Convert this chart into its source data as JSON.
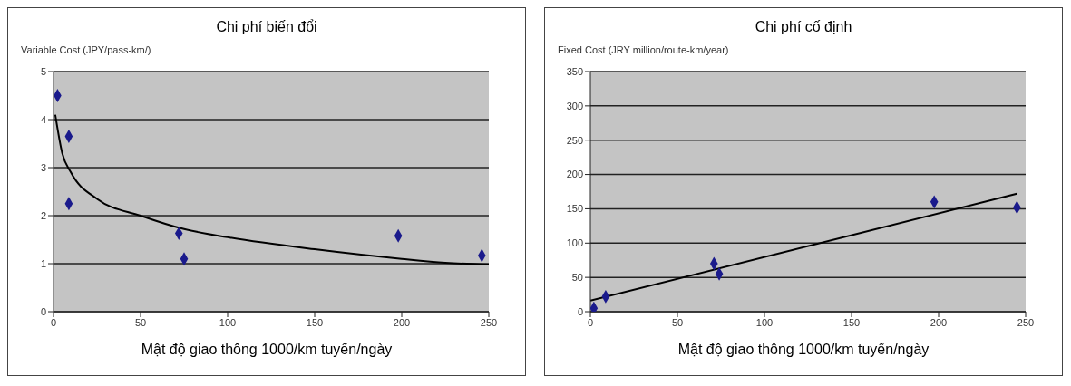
{
  "chart_data": [
    {
      "type": "scatter",
      "title": "Chi phí biến đổi",
      "ylabel": "Variable Cost (JPY/pass-km/)",
      "xlabel": "Mật độ giao thông 1000/km tuyến/ngày",
      "xlim": [
        0,
        250
      ],
      "xticks": [
        0,
        50,
        100,
        150,
        200,
        250
      ],
      "ylim": [
        0,
        5
      ],
      "yticks": [
        0,
        1,
        2,
        3,
        4,
        5
      ],
      "grid": "y",
      "legend": false,
      "marker": "diamond",
      "series": [
        {
          "color": "#1a1a8c",
          "x": [
            2.3,
            8.8,
            8.8,
            72,
            75,
            198,
            246
          ],
          "values": [
            4.5,
            3.65,
            2.25,
            1.63,
            1.1,
            1.58,
            1.17
          ]
        },
        {
          "type": "line",
          "color": "#000000",
          "marker": "none",
          "line_style": "solid",
          "x": [
            1,
            5,
            10,
            25,
            50,
            75,
            100,
            150,
            200,
            225,
            250
          ],
          "values": [
            4.1,
            3.3,
            2.9,
            2.35,
            2.0,
            1.72,
            1.55,
            1.3,
            1.1,
            1.02,
            0.98
          ]
        }
      ]
    },
    {
      "type": "scatter",
      "title": "Chi phí cố định",
      "ylabel": "Fixed Cost (JRY million/route-km/year)",
      "xlabel": "Mật độ giao thông 1000/km tuyến/ngày",
      "xlim": [
        0,
        250
      ],
      "xticks": [
        0,
        50,
        100,
        150,
        200,
        250
      ],
      "ylim": [
        0,
        350
      ],
      "yticks": [
        0,
        50,
        100,
        150,
        200,
        250,
        300,
        350
      ],
      "grid": "y",
      "legend": false,
      "marker": "diamond",
      "series": [
        {
          "color": "#1a1a8c",
          "x": [
            2,
            8.8,
            71,
            74,
            197.5,
            245
          ],
          "values": [
            5,
            22,
            70,
            55,
            160,
            152
          ]
        },
        {
          "type": "line",
          "color": "#000000",
          "marker": "none",
          "line_style": "solid",
          "x": [
            0,
            245
          ],
          "values": [
            16,
            172
          ]
        }
      ]
    }
  ]
}
